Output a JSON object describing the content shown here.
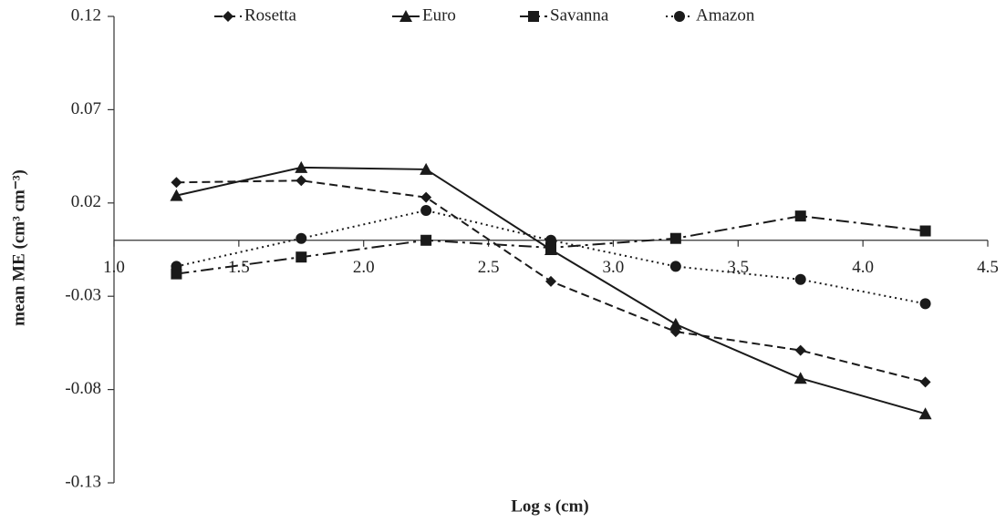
{
  "chart_data": {
    "type": "line",
    "x_label": "Log s (cm)",
    "y_label": "mean ME (cm³ cm⁻³)",
    "x": [
      1.25,
      1.75,
      2.25,
      2.75,
      3.25,
      3.75,
      4.25
    ],
    "series": [
      {
        "name": "Rosetta",
        "color": "#1a1a1a",
        "values": [
          0.031,
          0.032,
          0.023,
          -0.022,
          -0.049,
          -0.059,
          -0.076
        ]
      },
      {
        "name": "Euro",
        "color": "#1a1a1a",
        "values": [
          0.024,
          0.039,
          0.038,
          -0.005,
          -0.045,
          -0.074,
          -0.093
        ]
      },
      {
        "name": "Savanna",
        "color": "#1a1a1a",
        "values": [
          -0.018,
          -0.009,
          0.0,
          -0.004,
          0.001,
          0.013,
          0.005
        ]
      },
      {
        "name": "Amazon",
        "color": "#1a1a1a",
        "values": [
          -0.014,
          0.001,
          0.016,
          0.0,
          -0.014,
          -0.021,
          -0.034
        ]
      }
    ],
    "xlim": [
      1.0,
      4.5
    ],
    "xticks": [
      {
        "value": 1.0,
        "label": "1.0"
      },
      1.5,
      {
        "value": 2.0,
        "label": "2.0"
      },
      2.5,
      {
        "value": 3.0,
        "label": "3.0"
      },
      3.5,
      {
        "value": 4.0,
        "label": "4.0"
      },
      4.5
    ],
    "ylim": [
      -0.13,
      0.12
    ],
    "yticks": [
      -0.13,
      -0.08,
      -0.03,
      0.02,
      0.07,
      0.12
    ],
    "legend": "top"
  }
}
